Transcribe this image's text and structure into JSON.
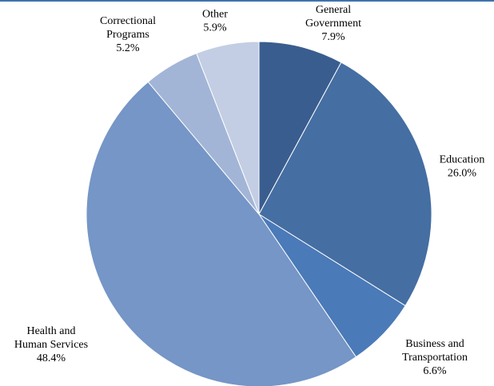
{
  "chart_data": {
    "type": "pie",
    "title": "",
    "slices": [
      {
        "label_lines": [
          "General",
          "Government"
        ],
        "value_text": "7.9%",
        "value": 7.9,
        "color": "#3a5d8f"
      },
      {
        "label_lines": [
          "Education"
        ],
        "value_text": "26.0%",
        "value": 26.0,
        "color": "#456ea2"
      },
      {
        "label_lines": [
          "Business and",
          "Transportation"
        ],
        "value_text": "6.6%",
        "value": 6.6,
        "color": "#4a7ab8"
      },
      {
        "label_lines": [
          "Health and",
          "Human Services"
        ],
        "value_text": "48.4%",
        "value": 48.4,
        "color": "#7596c6"
      },
      {
        "label_lines": [
          "Correctional",
          "Programs"
        ],
        "value_text": "5.2%",
        "value": 5.2,
        "color": "#a3b5d6"
      },
      {
        "label_lines": [
          "Other"
        ],
        "value_text": "5.9%",
        "value": 5.9,
        "color": "#c3cee4"
      }
    ],
    "slice_border_color": "#ffffff",
    "top_rule_color": "#3f72ad"
  }
}
